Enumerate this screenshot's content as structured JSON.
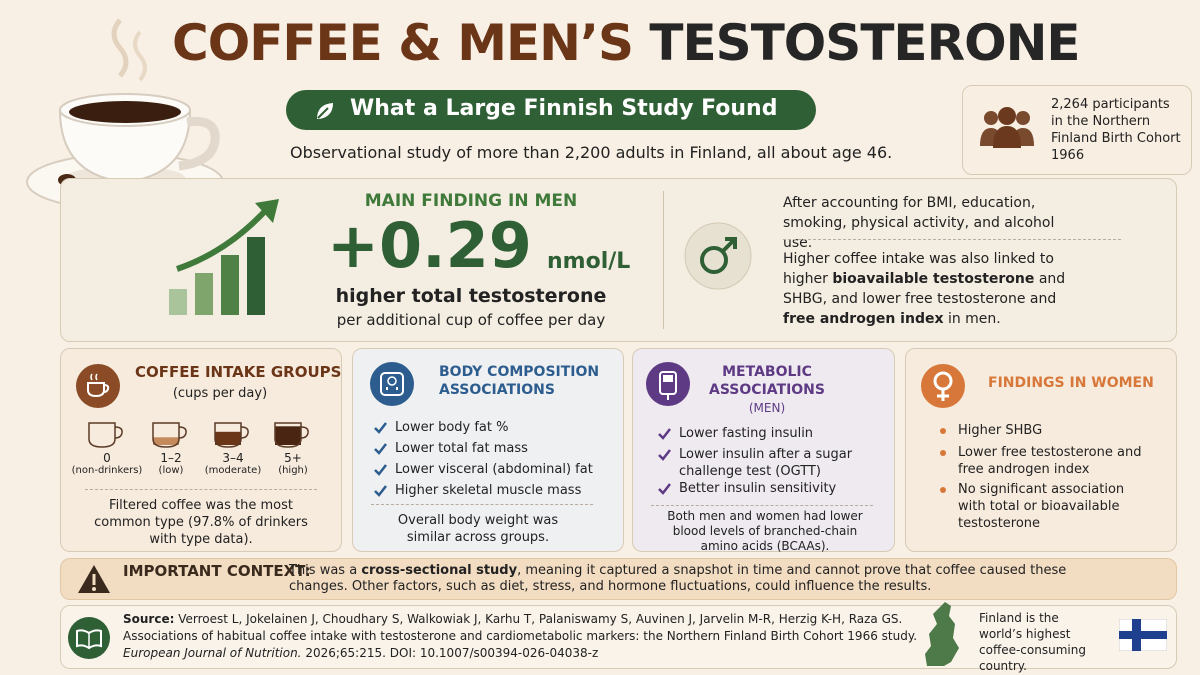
{
  "header": {
    "title_part1": "COFFEE & MEN’S",
    "title_part2": "TESTOSTERONE",
    "subtitle": "What a Large Finnish Study Found",
    "description": "Observational study of more than 2,200 adults in Finland, all about age 46."
  },
  "participants": "2,264 participants in the Northern Finland Birth Cohort 1966",
  "main_finding": {
    "label": "MAIN FINDING IN MEN",
    "value": "+0.29",
    "unit": "nmol/L",
    "line1": "higher total testosterone",
    "line2": "per additional cup of coffee per day"
  },
  "adjustment": "After accounting for BMI, education, smoking, physical activity, and alcohol use.",
  "additional": [
    "Higher coffee intake was also linked to higher ",
    "bioavailable testosterone",
    " and SHBG, and lower free testosterone and ",
    "free androgen index",
    " in men."
  ],
  "coffee_groups": {
    "title": "COFFEE INTAKE GROUPS",
    "subtitle": "(cups per day)",
    "groups": [
      {
        "count": "0",
        "label": "(non-drinkers)"
      },
      {
        "count": "1–2",
        "label": "(low)"
      },
      {
        "count": "3–4",
        "label": "(moderate)"
      },
      {
        "count": "5+",
        "label": "(high)"
      }
    ],
    "note": "Filtered coffee was the most common type (97.8% of drinkers with type data)."
  },
  "body_composition": {
    "title": "BODY COMPOSITION ASSOCIATIONS",
    "items": [
      "Lower body fat %",
      "Lower total fat mass",
      "Lower visceral (abdominal) fat",
      "Higher skeletal muscle mass"
    ],
    "note": "Overall body weight was similar across groups."
  },
  "metabolic": {
    "title": "METABOLIC ASSOCIATIONS",
    "subtitle": "(MEN)",
    "items": [
      "Lower fasting insulin",
      "Lower insulin after a sugar challenge test (OGTT)",
      "Better insulin sensitivity"
    ],
    "note": "Both men and women had lower blood levels of branched-chain amino acids (BCAAs)."
  },
  "women": {
    "title": "FINDINGS IN WOMEN",
    "items": [
      "Higher SHBG",
      "Lower free testosterone and free androgen index",
      "No significant association with total or bioavailable testosterone"
    ]
  },
  "context": {
    "label": "IMPORTANT CONTEXT:",
    "text": [
      "This was a ",
      "cross-sectional study",
      ", meaning it captured a snapshot in time and cannot prove that coffee caused these changes. Other factors, such as diet, stress, and hormone fluctuations, could influence the results."
    ]
  },
  "source": {
    "label": "Source:",
    "authors": "Verroest L, Jokelainen J, Choudhary S, Walkowiak J, Karhu T, Palaniswamy S, Auvinen J, Jarvelin M-R, Herzig K-H, Raza GS.",
    "title": "Associations of habitual coffee intake with testosterone and cardiometabolic markers: the Northern Finland Birth Cohort 1966 study.",
    "journal": "European Journal of Nutrition.",
    "citation": "2026;65:215. DOI: 10.1007/s00394-026-04038-z"
  },
  "finland": "Finland is the world’s highest coffee-consuming country."
}
